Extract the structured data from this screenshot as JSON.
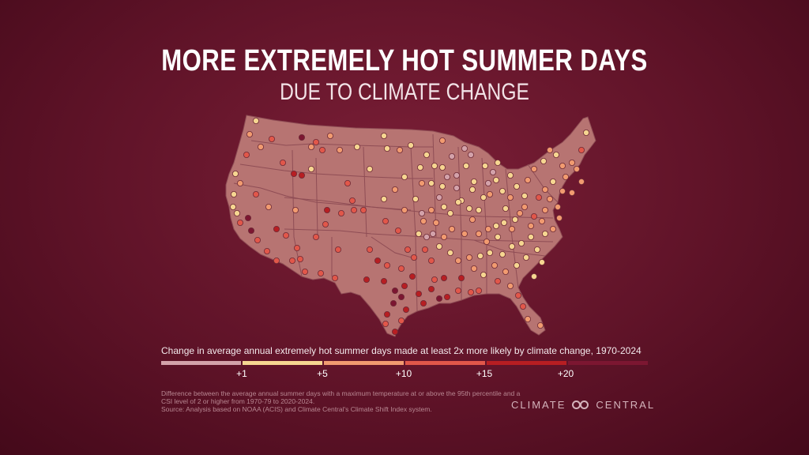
{
  "title": "MORE EXTREMELY HOT SUMMER DAYS",
  "subtitle": "DUE TO CLIMATE CHANGE",
  "legend": {
    "title": "Change in average annual extremely hot summer days made at least 2x more likely by climate change, 1970-2024",
    "ticks": [
      "+1",
      "+5",
      "+10",
      "+15",
      "+20"
    ],
    "colors": [
      "#d3a2aa",
      "#f6d691",
      "#f19b70",
      "#e1574a",
      "#b71e22",
      "#7c1631"
    ]
  },
  "footnote": {
    "line1": "Difference between the average annual summer days with a maximum temperature at or above the 95th percentile and a CSI level of 2 or higher from 1970-79 to 2020-2024.",
    "line2": "Source: Analysis based on NOAA (ACIS) and Climate Central's Climate Shift Index system."
  },
  "brand": {
    "left": "CLIMATE",
    "right": "CENTRAL"
  },
  "map_colors": {
    "land": "#b77472",
    "border": "#8f4d55"
  }
}
